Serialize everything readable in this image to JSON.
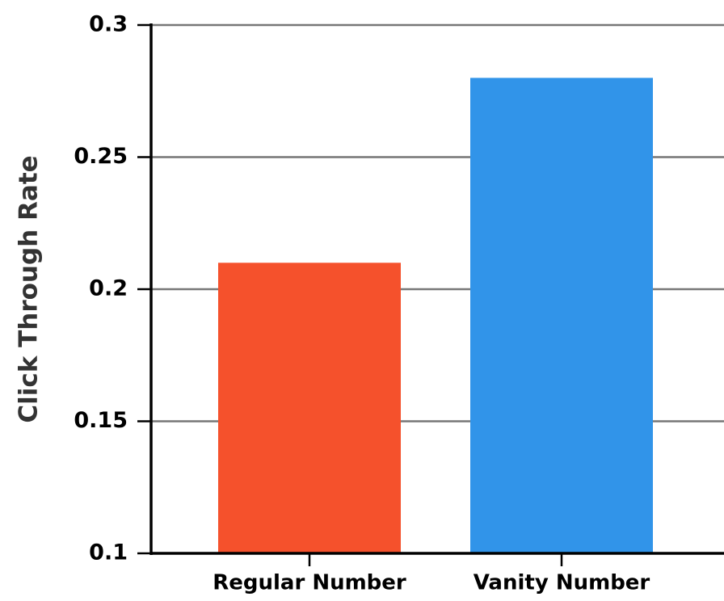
{
  "chart_data": {
    "type": "bar",
    "categories": [
      "Regular Number",
      "Vanity Number"
    ],
    "values": [
      0.21,
      0.28
    ],
    "colors": [
      "#f5512c",
      "#3194e9"
    ],
    "y_label": "Click Through Rate",
    "ylim": [
      0.1,
      0.3
    ],
    "yticks": [
      0.1,
      0.15,
      0.2,
      0.25,
      0.3
    ],
    "grid": true
  }
}
